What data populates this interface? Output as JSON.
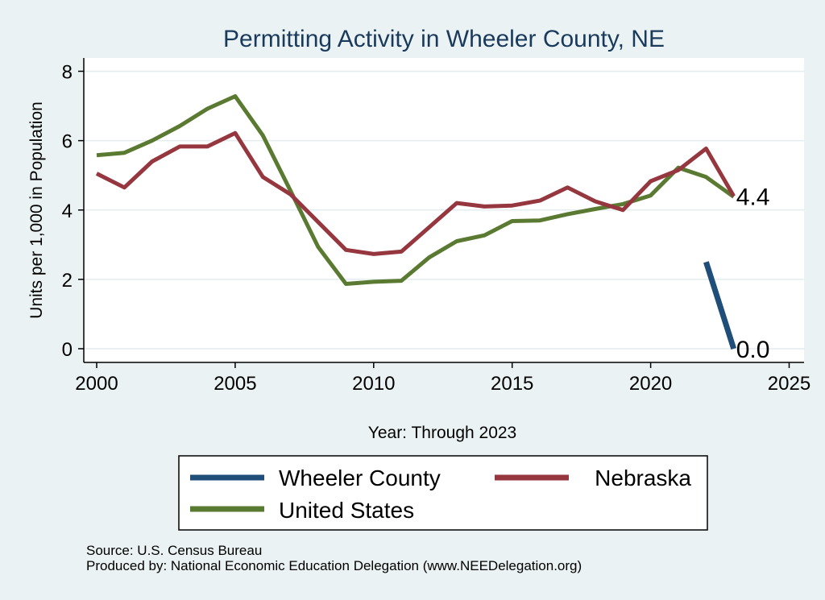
{
  "chart_data": {
    "type": "line",
    "title": "Permitting Activity in Wheeler County, NE",
    "xlabel": "Year: Through 2023",
    "ylabel": "Units per 1,000 in Population",
    "xlim": [
      2000,
      2025
    ],
    "ylim": [
      0,
      8
    ],
    "x_ticks": [
      2000,
      2005,
      2010,
      2015,
      2020,
      2025
    ],
    "y_ticks": [
      0,
      2,
      4,
      6,
      8
    ],
    "grid": true,
    "legend_position": "bottom",
    "series": [
      {
        "name": "Wheeler County",
        "color": "#1f4e79",
        "x": [
          2022,
          2023
        ],
        "values": [
          2.5,
          0.0
        ],
        "end_label": "0.0"
      },
      {
        "name": "Nebraska",
        "color": "#96373f",
        "x": [
          2000,
          2001,
          2002,
          2003,
          2004,
          2005,
          2006,
          2007,
          2008,
          2009,
          2010,
          2011,
          2012,
          2013,
          2014,
          2015,
          2016,
          2017,
          2018,
          2019,
          2020,
          2021,
          2022,
          2023
        ],
        "values": [
          5.05,
          4.65,
          5.4,
          5.83,
          5.83,
          6.22,
          4.95,
          4.45,
          3.65,
          2.85,
          2.73,
          2.8,
          3.5,
          4.2,
          4.1,
          4.13,
          4.27,
          4.65,
          4.25,
          4.0,
          4.83,
          5.15,
          5.77,
          4.4
        ],
        "end_label": "4.4"
      },
      {
        "name": "United States",
        "color": "#5a7a32",
        "x": [
          2000,
          2001,
          2002,
          2003,
          2004,
          2005,
          2006,
          2007,
          2008,
          2009,
          2010,
          2011,
          2012,
          2013,
          2014,
          2015,
          2016,
          2017,
          2018,
          2019,
          2020,
          2021,
          2022,
          2023
        ],
        "values": [
          5.58,
          5.65,
          6.0,
          6.42,
          6.92,
          7.28,
          6.15,
          4.55,
          2.93,
          1.87,
          1.93,
          1.96,
          2.63,
          3.1,
          3.27,
          3.68,
          3.7,
          3.88,
          4.03,
          4.17,
          4.42,
          5.22,
          4.95,
          4.38
        ]
      }
    ],
    "legend_order": [
      "Wheeler County",
      "Nebraska",
      "United States"
    ]
  },
  "notes": {
    "source": "Source: U.S. Census Bureau",
    "produced_by": "Produced by: National Economic Education Delegation (www.NEEDelegation.org)"
  }
}
